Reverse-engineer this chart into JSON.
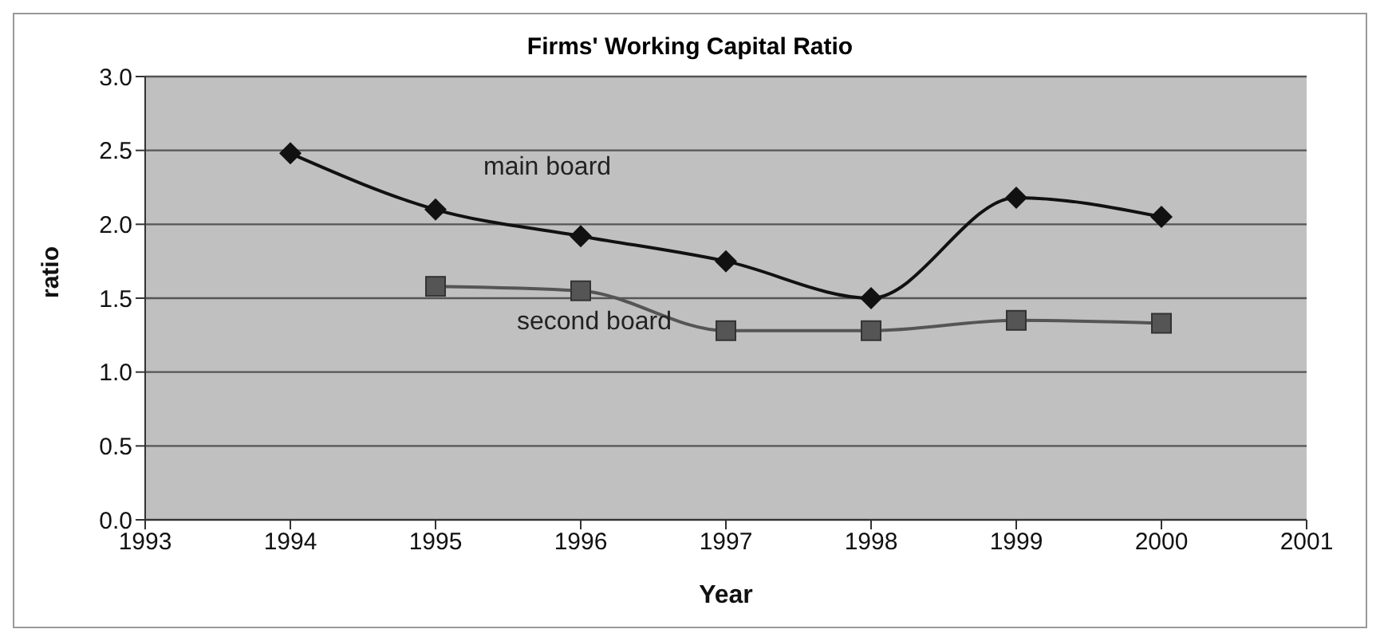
{
  "chart_data": {
    "type": "line",
    "title": "Firms' Working Capital Ratio",
    "xlabel": "Year",
    "ylabel": "ratio",
    "x": [
      1994,
      1995,
      1996,
      1997,
      1998,
      1999,
      2000
    ],
    "series": [
      {
        "name": "main board",
        "color": "#111111",
        "marker": "diamond",
        "values": [
          2.48,
          2.1,
          1.92,
          1.75,
          1.5,
          2.18,
          2.05
        ]
      },
      {
        "name": "second board",
        "color": "#555555",
        "marker": "square",
        "values": [
          null,
          1.58,
          1.55,
          1.28,
          1.28,
          1.35,
          1.33
        ]
      }
    ],
    "xlim": [
      1993,
      2001
    ],
    "xticks": [
      1993,
      1994,
      1995,
      1996,
      1997,
      1998,
      1999,
      2000,
      2001
    ],
    "ylim": [
      0,
      3
    ],
    "yticks": [
      {
        "value": 0,
        "label": "0.0"
      },
      0.5,
      {
        "value": 1,
        "label": "1.0"
      },
      1.5,
      {
        "value": 2,
        "label": "2.0"
      },
      2.5,
      {
        "value": 3,
        "label": "3.0"
      }
    ],
    "grid": "y",
    "legend": false,
    "line_style": "solid"
  }
}
